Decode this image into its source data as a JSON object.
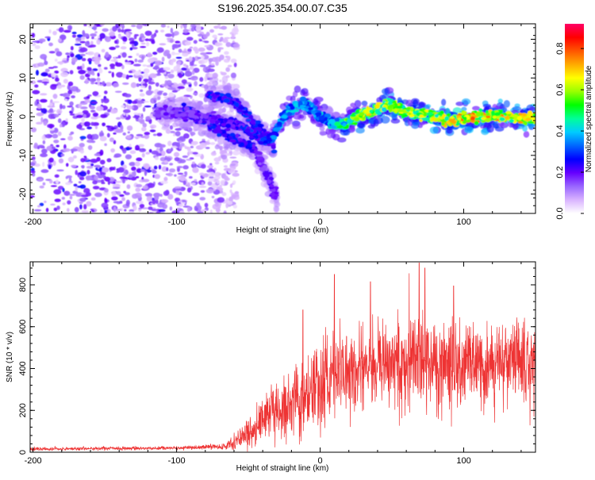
{
  "figure_title": "S196.2025.354.00.07.C35",
  "chart_data": [
    {
      "type": "heatmap",
      "title": "S196.2025.354.00.07.C35",
      "xlabel": "Height of straight line (km)",
      "ylabel": "Frequency (Hz)",
      "xlim": [
        -202,
        150
      ],
      "ylim": [
        -25,
        24
      ],
      "xticks": [
        -200,
        -100,
        0,
        100
      ],
      "yticks": [
        -20,
        -10,
        0,
        10,
        20
      ],
      "colorbar": {
        "label": "Normalized spectral amplitude",
        "range": [
          0,
          0.92
        ],
        "ticks": [
          0.0,
          0.2,
          0.4,
          0.6,
          0.8
        ],
        "colormap": [
          "#ffffff",
          "#d9b3ff",
          "#9966ff",
          "#6600ff",
          "#0000ff",
          "#0066ff",
          "#00ccff",
          "#00ff99",
          "#00ff00",
          "#99ff00",
          "#ffff00",
          "#ffaa00",
          "#ff5500",
          "#ff0000",
          "#ff0066"
        ]
      },
      "features": {
        "noise_region_x": [
          -202,
          -75
        ],
        "faint_noise_extent_x": [
          -202,
          -68
        ],
        "branch_upper": {
          "x": [
            -78,
            -62,
            -52,
            -45,
            -38,
            -32
          ],
          "y": [
            5.5,
            4.5,
            1.0,
            -2.0,
            -5.0,
            -8.0
          ]
        },
        "branch_lower": {
          "x": [
            -95,
            -85,
            -75,
            -65,
            -55,
            -45
          ],
          "y": [
            2.5,
            0.0,
            -2.5,
            -5.0,
            -6.5,
            -8.5
          ]
        },
        "tail": {
          "x": [
            -45,
            -40,
            -35,
            -30
          ],
          "y": [
            -9,
            -13,
            -17,
            -21
          ]
        },
        "ridge": {
          "x": [
            -115,
            -100,
            -80,
            -60,
            -48,
            -40,
            -35,
            -30,
            -25,
            -20,
            -15,
            -10,
            -5,
            0,
            5,
            10,
            15,
            20,
            25,
            30,
            35,
            40,
            45,
            50,
            55,
            60,
            70,
            80,
            90,
            100,
            110,
            120,
            130,
            140,
            150
          ],
          "y": [
            1,
            1,
            0,
            -2,
            -4,
            -6,
            -6,
            -3,
            0,
            2,
            3,
            3,
            2,
            0,
            -1,
            -2,
            -2,
            -1,
            0,
            1,
            1,
            2,
            3,
            3,
            2,
            1,
            0.5,
            0,
            -1,
            -0.5,
            0,
            0,
            0,
            -0.5,
            0
          ],
          "amplitude": [
            0.18,
            0.2,
            0.22,
            0.25,
            0.28,
            0.3,
            0.32,
            0.35,
            0.38,
            0.4,
            0.42,
            0.4,
            0.38,
            0.4,
            0.42,
            0.45,
            0.5,
            0.55,
            0.6,
            0.62,
            0.65,
            0.62,
            0.6,
            0.62,
            0.65,
            0.6,
            0.62,
            0.65,
            0.7,
            0.75,
            0.72,
            0.7,
            0.68,
            0.7,
            0.72
          ]
        }
      }
    },
    {
      "type": "line",
      "xlabel": "Height of straight line (km)",
      "ylabel": "SNR (10 * v/v)",
      "xlim": [
        -202,
        150
      ],
      "ylim": [
        0,
        910
      ],
      "xticks": [
        -200,
        -100,
        0,
        100
      ],
      "yticks": [
        0,
        200,
        400,
        600,
        800
      ],
      "color": "#ee3333",
      "series": [
        {
          "name": "SNR",
          "x": [
            -202,
            -150,
            -100,
            -80,
            -75,
            -70,
            -65,
            -60,
            -55,
            -50,
            -45,
            -40,
            -35,
            -30,
            -25,
            -20,
            -15,
            -10,
            -5,
            0,
            5,
            10,
            15,
            20,
            25,
            30,
            35,
            40,
            45,
            50,
            55,
            60,
            65,
            70,
            75,
            80,
            85,
            90,
            95,
            100,
            105,
            110,
            115,
            120,
            125,
            130,
            135,
            140,
            145,
            150
          ],
          "y": [
            15,
            18,
            20,
            25,
            30,
            25,
            30,
            45,
            70,
            100,
            130,
            150,
            170,
            190,
            210,
            230,
            260,
            280,
            300,
            320,
            340,
            360,
            380,
            390,
            400,
            410,
            420,
            420,
            425,
            430,
            430,
            440,
            440,
            440,
            430,
            430,
            420,
            420,
            420,
            410,
            420,
            430,
            420,
            420,
            410,
            420,
            420,
            420,
            410,
            420
          ],
          "noise_amplitude": [
            8,
            8,
            8,
            10,
            12,
            12,
            15,
            30,
            50,
            70,
            90,
            100,
            110,
            120,
            130,
            140,
            160,
            170,
            180,
            190,
            190,
            200,
            200,
            200,
            200,
            200,
            200,
            200,
            210,
            210,
            210,
            220,
            220,
            220,
            210,
            200,
            200,
            200,
            190,
            190,
            190,
            200,
            190,
            190,
            190,
            190,
            190,
            190,
            190,
            190
          ],
          "spikes": [
            {
              "x": -12,
              "y": 680
            },
            {
              "x": 10,
              "y": 850
            },
            {
              "x": 35,
              "y": 815
            },
            {
              "x": 62,
              "y": 855
            },
            {
              "x": 69,
              "y": 905
            },
            {
              "x": 73,
              "y": 880
            },
            {
              "x": 93,
              "y": 795
            }
          ]
        }
      ]
    }
  ]
}
